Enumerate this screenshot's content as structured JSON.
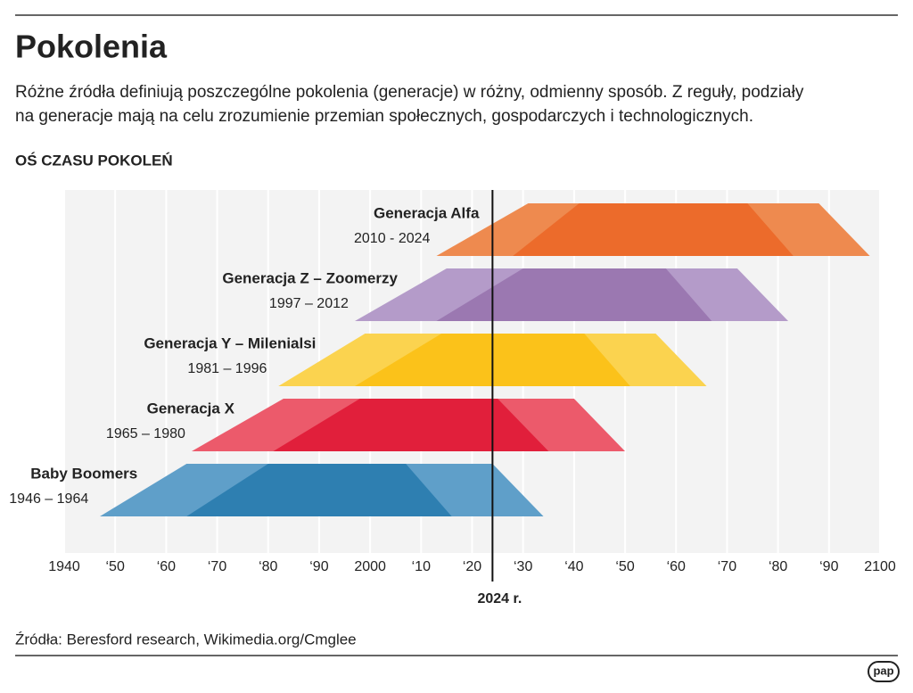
{
  "chart_data": {
    "type": "timeline",
    "title": "Pokolenia",
    "description": [
      "Różne źródła definiują poszczególne pokolenia (generacje) w różny, odmienny sposób. Z reguły, podziały",
      "na generacje mają na celu zrozumienie przemian społecznych, gospodarczych i technologicznych."
    ],
    "subtitle": "OŚ CZASU POKOLEŃ",
    "source": "Źródła: Beresford research, Wikimedia.org/Cmglee",
    "logo": "pap",
    "marker": {
      "value": 2024,
      "label": "2024 r."
    },
    "xlim": [
      1940,
      2100
    ],
    "xticks": [
      1940,
      {
        "value": 1950,
        "label": "‘50"
      },
      {
        "value": 1960,
        "label": "‘60"
      },
      {
        "value": 1970,
        "label": "‘70"
      },
      {
        "value": 1980,
        "label": "‘80"
      },
      {
        "value": 1990,
        "label": "‘90"
      },
      2000,
      {
        "value": 2010,
        "label": "‘10"
      },
      {
        "value": 2020,
        "label": "‘20"
      },
      {
        "value": 2030,
        "label": "‘30"
      },
      {
        "value": 2040,
        "label": "‘40"
      },
      {
        "value": 2050,
        "label": "‘50"
      },
      {
        "value": 2060,
        "label": "‘60"
      },
      {
        "value": 2070,
        "label": "‘70"
      },
      {
        "value": 2080,
        "label": "‘80"
      },
      {
        "value": 2090,
        "label": "‘90"
      },
      2100
    ],
    "series": [
      {
        "name": "Generacja Alfa",
        "range_label": "2010 - 2024",
        "color": "#ee8a4f",
        "inner_color": "#ec6b2b",
        "outer": [
          2013,
          2031,
          2088,
          2098
        ],
        "inner": [
          2028,
          2041,
          2074,
          2083
        ]
      },
      {
        "name": "Generacja Z – Zoomerzy",
        "range_label": "1997 – 2012",
        "color": "#b49bc9",
        "inner_color": "#9b78b1",
        "outer": [
          1997,
          2015,
          2072,
          2082
        ],
        "inner": [
          2013,
          2030,
          2058,
          2067
        ]
      },
      {
        "name": "Generacja Y – Milenialsi",
        "range_label": "1981 – 1996",
        "color": "#fbd34f",
        "inner_color": "#fbc21a",
        "outer": [
          1982,
          1999,
          2056,
          2066
        ],
        "inner": [
          1997,
          2014,
          2042,
          2051
        ]
      },
      {
        "name": "Generacja X",
        "range_label": "1965 – 1980",
        "color": "#ec5a6b",
        "inner_color": "#e11f3b",
        "outer": [
          1965,
          1983,
          2040,
          2050
        ],
        "inner": [
          1981,
          1998,
          2025,
          2035
        ]
      },
      {
        "name": "Baby Boomers",
        "range_label": "1946 – 1964",
        "color": "#5f9fc9",
        "inner_color": "#2e7fb1",
        "outer": [
          1947,
          1964,
          2024,
          2034
        ],
        "inner": [
          1964,
          1980,
          2007,
          2016
        ]
      }
    ]
  }
}
